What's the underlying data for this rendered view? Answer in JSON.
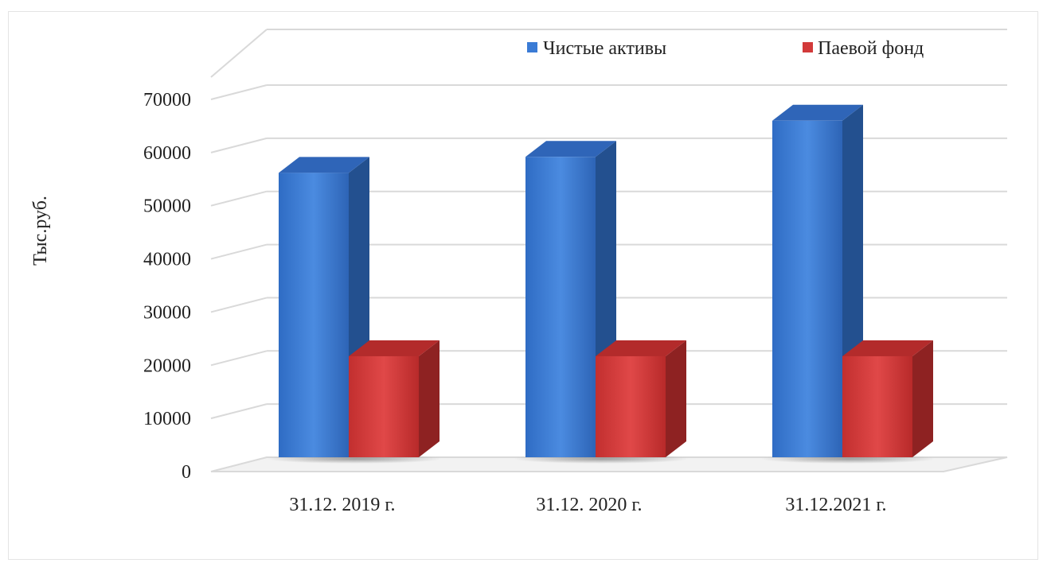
{
  "chart_data": {
    "type": "bar",
    "style": "3d-clustered-column",
    "title": "",
    "xlabel": "",
    "ylabel": "Тыс.руб.",
    "categories": [
      "31.12. 2019 г.",
      "31.12. 2020 г.",
      "31.12.2021 г."
    ],
    "series": [
      {
        "name": "Чистые активы",
        "values": [
          53500,
          56500,
          63300
        ],
        "color": "#3a7bd5"
      },
      {
        "name": "Паевой фонд",
        "values": [
          19000,
          19000,
          19000
        ],
        "color": "#d23a3a"
      }
    ],
    "ylim": [
      0,
      70000
    ],
    "yticks": [
      "0",
      "10000",
      "20000",
      "30000",
      "40000",
      "50000",
      "60000",
      "70000"
    ],
    "grid": true,
    "legend_position": "top-right"
  }
}
